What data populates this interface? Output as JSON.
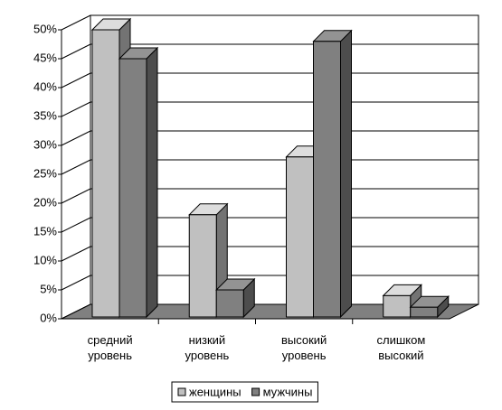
{
  "chart_data": {
    "type": "bar3d",
    "categories": [
      "средний уровень",
      "низкий уровень",
      "высокий уровень",
      "слишком высокий"
    ],
    "series": [
      {
        "name": "женщины",
        "color": "#c0c0c0",
        "values": [
          50,
          18,
          28,
          4
        ]
      },
      {
        "name": "мужчины",
        "color": "#808080",
        "values": [
          45,
          5,
          48,
          2
        ]
      }
    ],
    "ylim": [
      0,
      50
    ],
    "yticks": [
      {
        "value": 0,
        "label": "0%"
      },
      {
        "value": 5,
        "label": "5%"
      },
      {
        "value": 10,
        "label": "10%"
      },
      {
        "value": 15,
        "label": "15%"
      },
      {
        "value": 20,
        "label": "20%"
      },
      {
        "value": 25,
        "label": "25%"
      },
      {
        "value": 30,
        "label": "30%"
      },
      {
        "value": 35,
        "label": "35%"
      },
      {
        "value": 40,
        "label": "40%"
      },
      {
        "value": 45,
        "label": "45%"
      },
      {
        "value": 50,
        "label": "50%"
      }
    ],
    "grid": true,
    "legend": "bottom"
  }
}
